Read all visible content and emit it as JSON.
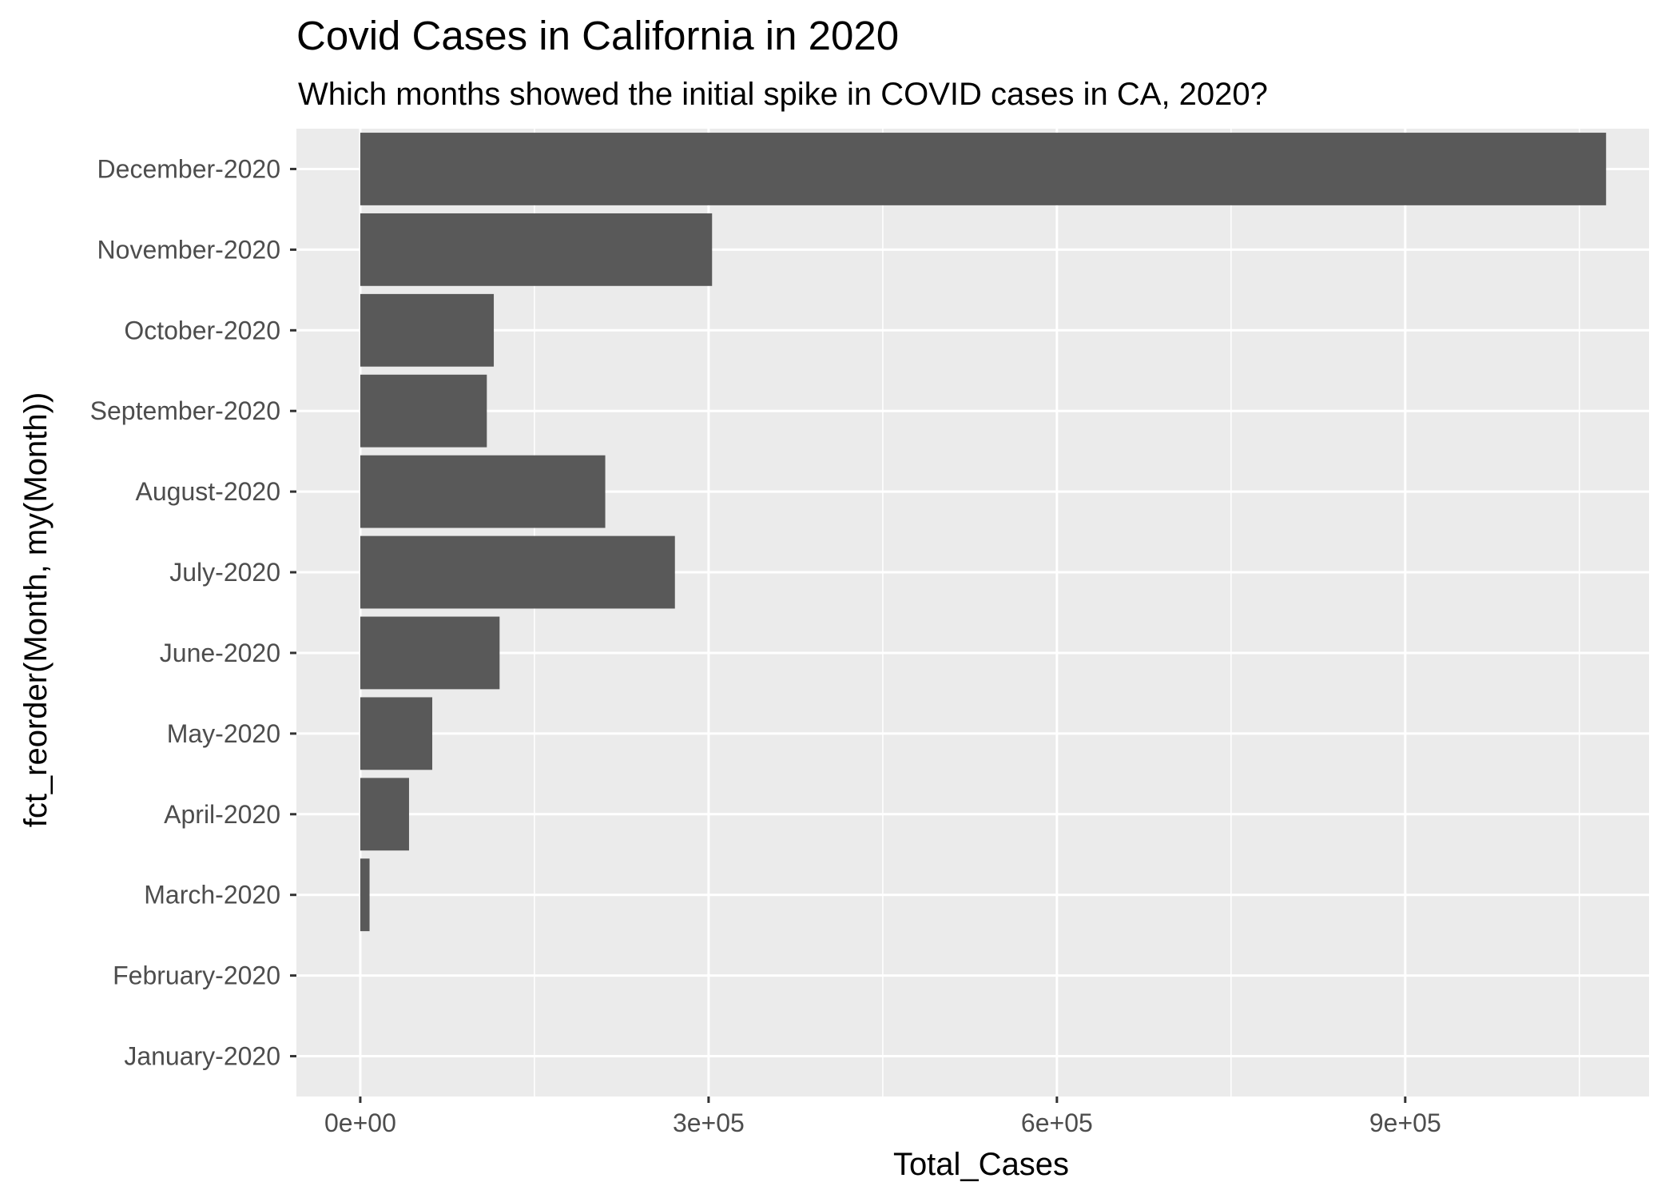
{
  "chart_data": {
    "type": "bar",
    "orientation": "horizontal",
    "title": "Covid Cases in California in 2020",
    "subtitle": "Which months showed the initial spike in COVID cases in CA, 2020?",
    "xlabel": "Total_Cases",
    "ylabel": "fct_reorder(Month, my(Month))",
    "categories": [
      "January-2020",
      "February-2020",
      "March-2020",
      "April-2020",
      "May-2020",
      "June-2020",
      "July-2020",
      "August-2020",
      "September-2020",
      "October-2020",
      "November-2020",
      "December-2020"
    ],
    "values": [
      0,
      0,
      8000,
      42000,
      62000,
      120000,
      271000,
      211000,
      109000,
      115000,
      303000,
      1073000
    ],
    "xlim": [
      -55000,
      1110000
    ],
    "x_ticks": [
      0,
      300000,
      600000,
      900000
    ],
    "x_tick_labels": [
      "0e+00",
      "3e+05",
      "6e+05",
      "9e+05"
    ],
    "grid": true,
    "colors": {
      "panel_background": "#ebebeb",
      "grid_major": "#ffffff",
      "bar_fill": "#595959",
      "tick_text": "#4d4d4d",
      "tick_mark": "#333333"
    }
  }
}
